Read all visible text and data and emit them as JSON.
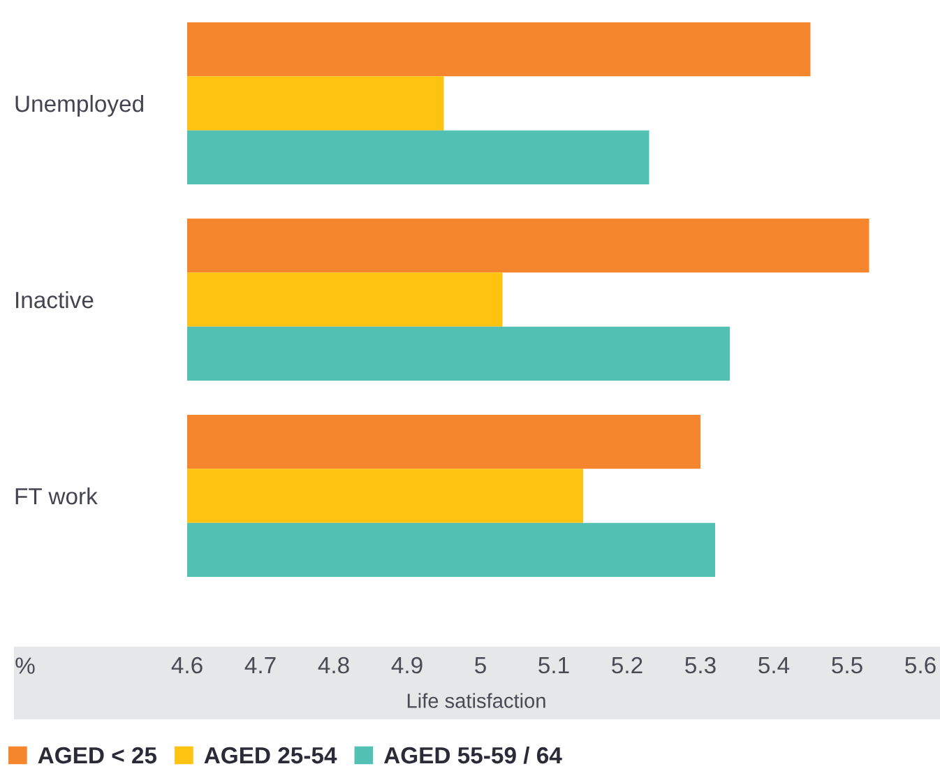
{
  "chart_data": {
    "type": "bar",
    "orientation": "horizontal",
    "categories": [
      "Unemployed",
      "Inactive",
      "FT work"
    ],
    "series": [
      {
        "name": "AGED < 25",
        "color": "#f5862d",
        "values": [
          5.45,
          5.53,
          5.3
        ]
      },
      {
        "name": "AGED 25-54",
        "color": "#fec210",
        "values": [
          4.95,
          5.03,
          5.14
        ]
      },
      {
        "name": "AGED 55-59 / 64",
        "color": "#52c0b3",
        "values": [
          5.23,
          5.34,
          5.32
        ]
      }
    ],
    "xlim": [
      4.6,
      5.6
    ],
    "xticks": [
      4.6,
      4.7,
      4.8,
      4.9,
      5,
      5.1,
      5.2,
      5.3,
      5.4,
      5.5,
      5.6
    ],
    "xlabel": "Life satisfaction",
    "annotations": [
      "%"
    ],
    "legend": "bottom",
    "grid": false
  }
}
